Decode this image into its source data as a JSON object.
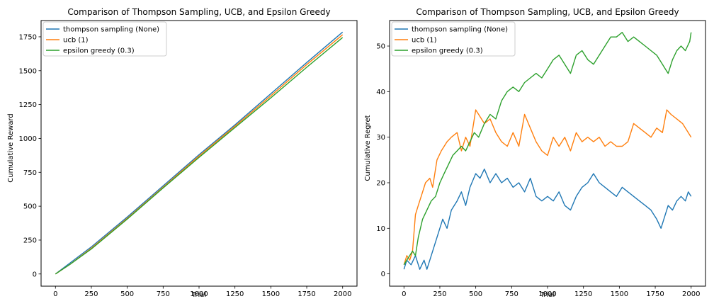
{
  "colors": {
    "thompson": "#1f77b4",
    "ucb": "#ff7f0e",
    "epsilon": "#2ca02c",
    "axis": "#000000",
    "legend_border": "#cccccc"
  },
  "chart_data": [
    {
      "type": "line",
      "title": "Comparison of Thompson Sampling, UCB, and Epsilon Greedy",
      "xlabel": "Trial",
      "ylabel": "Cumulative Reward",
      "xlim": [
        -100,
        2100
      ],
      "ylim": [
        -90,
        1870
      ],
      "xticks": [
        0,
        250,
        500,
        750,
        1000,
        1250,
        1500,
        1750,
        2000
      ],
      "yticks": [
        0,
        250,
        500,
        750,
        1000,
        1250,
        1500,
        1750
      ],
      "grid": false,
      "legend_position": "upper-left",
      "series": [
        {
          "name": "thompson sampling (None)",
          "color_key": "thompson",
          "x": [
            0,
            100,
            250,
            500,
            750,
            1000,
            1250,
            1500,
            1750,
            2000
          ],
          "y": [
            0,
            80,
            200,
            420,
            650,
            880,
            1100,
            1330,
            1560,
            1785
          ]
        },
        {
          "name": "ucb (1)",
          "color_key": "ucb",
          "x": [
            0,
            100,
            250,
            500,
            750,
            1000,
            1250,
            1500,
            1750,
            2000
          ],
          "y": [
            0,
            70,
            190,
            410,
            640,
            870,
            1090,
            1315,
            1545,
            1765
          ]
        },
        {
          "name": "epsilon greedy (0.3)",
          "color_key": "epsilon",
          "x": [
            0,
            100,
            250,
            500,
            750,
            1000,
            1250,
            1500,
            1750,
            2000
          ],
          "y": [
            0,
            70,
            185,
            405,
            635,
            860,
            1080,
            1300,
            1525,
            1745
          ]
        }
      ]
    },
    {
      "type": "line",
      "title": "Comparison of Thompson Sampling, UCB, and Epsilon Greedy",
      "xlabel": "Trial",
      "ylabel": "Cumulative Regret",
      "xlim": [
        -100,
        2100
      ],
      "ylim": [
        -2.7,
        55.6
      ],
      "xticks": [
        0,
        250,
        500,
        750,
        1000,
        1250,
        1500,
        1750,
        2000
      ],
      "yticks": [
        0,
        10,
        20,
        30,
        40,
        50
      ],
      "grid": false,
      "legend_position": "upper-left",
      "series": [
        {
          "name": "thompson sampling (None)",
          "color_key": "thompson",
          "x": [
            0,
            20,
            50,
            80,
            110,
            140,
            160,
            190,
            230,
            270,
            300,
            330,
            370,
            400,
            430,
            460,
            500,
            530,
            560,
            600,
            640,
            680,
            720,
            760,
            800,
            840,
            880,
            920,
            960,
            1000,
            1040,
            1080,
            1120,
            1160,
            1200,
            1240,
            1280,
            1320,
            1360,
            1400,
            1440,
            1480,
            1520,
            1560,
            1600,
            1640,
            1680,
            1720,
            1760,
            1790,
            1810,
            1840,
            1870,
            1900,
            1930,
            1960,
            1980,
            2000
          ],
          "y": [
            1,
            3,
            2,
            4,
            1,
            3,
            1,
            4,
            8,
            12,
            10,
            14,
            16,
            18,
            15,
            19,
            22,
            21,
            23,
            20,
            22,
            20,
            21,
            19,
            20,
            18,
            21,
            17,
            16,
            17,
            16,
            18,
            15,
            14,
            17,
            19,
            20,
            22,
            20,
            19,
            18,
            17,
            19,
            18,
            17,
            16,
            15,
            14,
            12,
            10,
            12,
            15,
            14,
            16,
            17,
            16,
            18,
            17
          ]
        },
        {
          "name": "ucb (1)",
          "color_key": "ucb",
          "x": [
            0,
            20,
            40,
            60,
            80,
            100,
            120,
            150,
            180,
            200,
            230,
            260,
            300,
            330,
            370,
            400,
            430,
            460,
            500,
            520,
            560,
            600,
            640,
            680,
            720,
            760,
            800,
            840,
            880,
            920,
            960,
            1000,
            1040,
            1080,
            1120,
            1160,
            1200,
            1240,
            1280,
            1320,
            1360,
            1400,
            1440,
            1480,
            1520,
            1560,
            1600,
            1640,
            1680,
            1720,
            1760,
            1800,
            1830,
            1860,
            1900,
            1940,
            1980,
            2000
          ],
          "y": [
            2,
            4,
            3,
            5,
            13,
            15,
            17,
            20,
            21,
            19,
            25,
            27,
            29,
            30,
            31,
            27,
            30,
            28,
            36,
            35,
            33,
            34,
            31,
            29,
            28,
            31,
            28,
            35,
            32,
            29,
            27,
            26,
            30,
            28,
            30,
            27,
            31,
            29,
            30,
            29,
            30,
            28,
            29,
            28,
            28,
            29,
            33,
            32,
            31,
            30,
            32,
            31,
            36,
            35,
            34,
            33,
            31,
            30
          ]
        },
        {
          "name": "epsilon greedy (0.3)",
          "color_key": "epsilon",
          "x": [
            0,
            20,
            40,
            60,
            80,
            100,
            130,
            160,
            190,
            220,
            250,
            280,
            310,
            340,
            370,
            400,
            430,
            460,
            490,
            520,
            560,
            600,
            640,
            680,
            720,
            760,
            800,
            840,
            880,
            920,
            960,
            1000,
            1040,
            1080,
            1120,
            1160,
            1200,
            1240,
            1280,
            1320,
            1360,
            1400,
            1440,
            1480,
            1520,
            1560,
            1600,
            1640,
            1680,
            1720,
            1760,
            1800,
            1820,
            1840,
            1870,
            1900,
            1930,
            1960,
            1990,
            2000
          ],
          "y": [
            2,
            3,
            4,
            5,
            4,
            8,
            12,
            14,
            16,
            17,
            20,
            22,
            24,
            26,
            27,
            28,
            27,
            29,
            31,
            30,
            33,
            35,
            34,
            38,
            40,
            41,
            40,
            42,
            43,
            44,
            43,
            45,
            47,
            48,
            46,
            44,
            48,
            49,
            47,
            46,
            48,
            50,
            52,
            52,
            53,
            51,
            52,
            51,
            50,
            49,
            48,
            46,
            45,
            44,
            47,
            49,
            50,
            49,
            51,
            53
          ]
        }
      ]
    }
  ]
}
